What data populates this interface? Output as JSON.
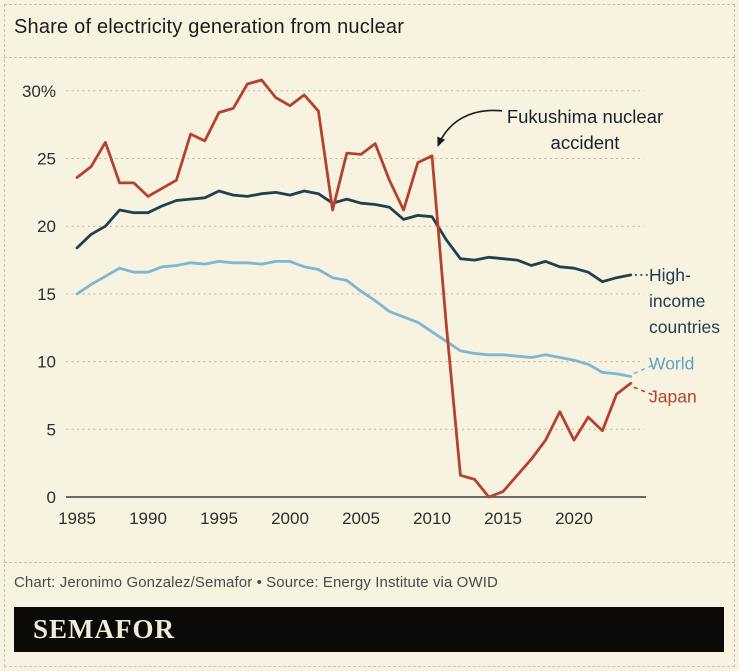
{
  "footer": {
    "credit": "Chart: Jeronimo Gonzalez/Semafor • Source: Energy Institute via OWID",
    "brand": "SEMAFOR"
  },
  "chart_data": {
    "type": "line",
    "title": "Share of electricity generation from nuclear",
    "ylabel": "",
    "xlabel": "",
    "ylim": [
      0,
      32
    ],
    "grid": "dotted-horizontal",
    "legend_position": "right-end-labels",
    "x": [
      1985,
      1986,
      1987,
      1988,
      1989,
      1990,
      1991,
      1992,
      1993,
      1994,
      1995,
      1996,
      1997,
      1998,
      1999,
      2000,
      2001,
      2002,
      2003,
      2004,
      2005,
      2006,
      2007,
      2008,
      2009,
      2010,
      2011,
      2012,
      2013,
      2014,
      2015,
      2016,
      2017,
      2018,
      2019,
      2020,
      2021,
      2022,
      2023,
      2024
    ],
    "xticks": [
      1985,
      1990,
      1995,
      2000,
      2005,
      2010,
      2015,
      2020
    ],
    "yticks": [
      {
        "value": 0,
        "label": "0"
      },
      {
        "value": 5,
        "label": "5"
      },
      {
        "value": 10,
        "label": "10"
      },
      {
        "value": 15,
        "label": "15"
      },
      {
        "value": 20,
        "label": "20"
      },
      {
        "value": 25,
        "label": "25"
      },
      {
        "value": 30,
        "label": "30%"
      }
    ],
    "series": [
      {
        "name": "High-income countries",
        "label_lines": [
          "High-",
          "income",
          "countries"
        ],
        "color": "#20404f",
        "label_color": "#20404f",
        "values": [
          18.4,
          19.4,
          20.0,
          21.2,
          21.0,
          21.0,
          21.5,
          21.9,
          22.0,
          22.1,
          22.6,
          22.3,
          22.2,
          22.4,
          22.5,
          22.3,
          22.6,
          22.4,
          21.7,
          22.0,
          21.7,
          21.6,
          21.4,
          20.5,
          20.8,
          20.7,
          19.0,
          17.6,
          17.5,
          17.7,
          17.6,
          17.5,
          17.1,
          17.4,
          17.0,
          16.9,
          16.6,
          15.9,
          16.2,
          16.4
        ]
      },
      {
        "name": "World",
        "label_lines": [
          "World"
        ],
        "color": "#7fb6d2",
        "label_color": "#62a1c3",
        "values": [
          15.0,
          15.7,
          16.3,
          16.9,
          16.6,
          16.6,
          17.0,
          17.1,
          17.3,
          17.2,
          17.4,
          17.3,
          17.3,
          17.2,
          17.4,
          17.4,
          17.0,
          16.8,
          16.2,
          16.0,
          15.2,
          14.5,
          13.7,
          13.3,
          12.9,
          12.2,
          11.5,
          10.8,
          10.6,
          10.5,
          10.5,
          10.4,
          10.3,
          10.5,
          10.3,
          10.1,
          9.8,
          9.2,
          9.1,
          8.9
        ]
      },
      {
        "name": "Japan",
        "label_lines": [
          "Japan"
        ],
        "color": "#b4432e",
        "label_color": "#b4432e",
        "values": [
          23.6,
          24.4,
          26.2,
          23.2,
          23.2,
          22.2,
          22.8,
          23.4,
          26.8,
          26.3,
          28.4,
          28.7,
          30.5,
          30.8,
          29.5,
          28.9,
          29.7,
          28.5,
          21.2,
          25.4,
          25.3,
          26.1,
          23.4,
          21.2,
          24.7,
          25.2,
          12.8,
          1.6,
          1.3,
          0.0,
          0.4,
          1.6,
          2.8,
          4.2,
          6.3,
          4.2,
          5.9,
          4.9,
          7.6,
          8.4
        ]
      }
    ],
    "annotation": {
      "lines": [
        "Fukushima nuclear",
        "accident"
      ],
      "target_year": 2010,
      "target_value": 25.2
    }
  }
}
